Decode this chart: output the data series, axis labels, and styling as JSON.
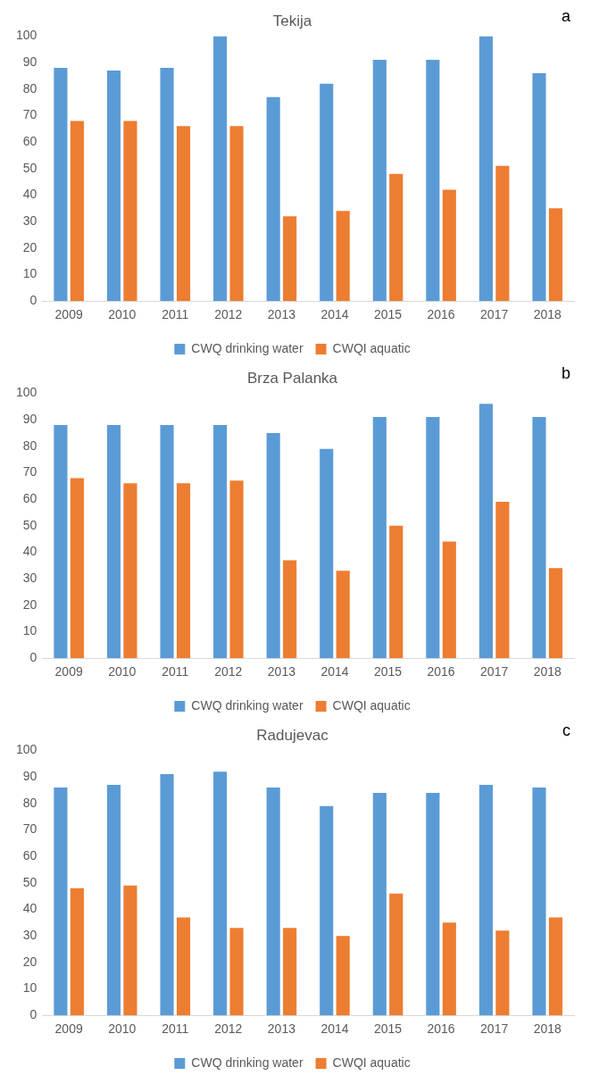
{
  "chart_data": [
    {
      "type": "bar",
      "title": "Tekija",
      "annotations": [
        "a"
      ],
      "categories": [
        "2009",
        "2010",
        "2011",
        "2012",
        "2013",
        "2014",
        "2015",
        "2016",
        "2017",
        "2018"
      ],
      "series": [
        {
          "name": "CWQ drinking water",
          "color": "#5b9bd5",
          "values": [
            88,
            87,
            88,
            100,
            77,
            82,
            91,
            91,
            100,
            86
          ]
        },
        {
          "name": "CWQI aquatic",
          "color": "#ed7d31",
          "values": [
            68,
            68,
            66,
            66,
            32,
            34,
            48,
            42,
            51,
            35
          ]
        }
      ],
      "ylim": [
        0,
        100
      ],
      "yticks": [
        0,
        10,
        20,
        30,
        40,
        50,
        60,
        70,
        80,
        90,
        100
      ],
      "grid": false,
      "legend": "bottom"
    },
    {
      "type": "bar",
      "title": "Brza Palanka",
      "annotations": [
        "b"
      ],
      "categories": [
        "2009",
        "2010",
        "2011",
        "2012",
        "2013",
        "2014",
        "2015",
        "2016",
        "2017",
        "2018"
      ],
      "series": [
        {
          "name": "CWQ drinking water",
          "color": "#5b9bd5",
          "values": [
            88,
            88,
            88,
            88,
            85,
            79,
            91,
            91,
            96,
            91
          ]
        },
        {
          "name": "CWQI aquatic",
          "color": "#ed7d31",
          "values": [
            68,
            66,
            66,
            67,
            37,
            33,
            50,
            44,
            59,
            34
          ]
        }
      ],
      "ylim": [
        0,
        100
      ],
      "yticks": [
        0,
        10,
        20,
        30,
        40,
        50,
        60,
        70,
        80,
        90,
        100
      ],
      "grid": false,
      "legend": "bottom"
    },
    {
      "type": "bar",
      "title": "Radujevac",
      "annotations": [
        "c"
      ],
      "categories": [
        "2009",
        "2010",
        "2011",
        "2012",
        "2013",
        "2014",
        "2015",
        "2016",
        "2017",
        "2018"
      ],
      "series": [
        {
          "name": "CWQ drinking water",
          "color": "#5b9bd5",
          "values": [
            86,
            87,
            91,
            92,
            86,
            79,
            84,
            84,
            87,
            86
          ]
        },
        {
          "name": "CWQI aquatic",
          "color": "#ed7d31",
          "values": [
            48,
            49,
            37,
            33,
            33,
            30,
            46,
            35,
            32,
            37
          ]
        }
      ],
      "ylim": [
        0,
        100
      ],
      "yticks": [
        0,
        10,
        20,
        30,
        40,
        50,
        60,
        70,
        80,
        90,
        100
      ],
      "grid": false,
      "legend": "bottom"
    }
  ]
}
